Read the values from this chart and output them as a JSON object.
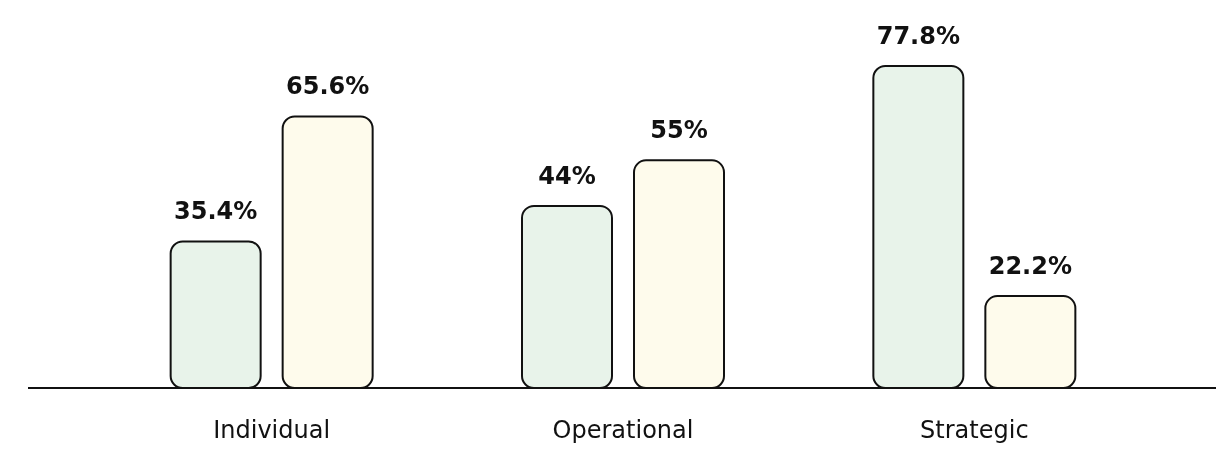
{
  "chart_data": {
    "type": "bar",
    "categories": [
      "Individual",
      "Operational",
      "Strategic"
    ],
    "series": [
      {
        "color": "#e8f3ea",
        "values": [
          35.4,
          44,
          77.8
        ],
        "value_labels": [
          "35.4%",
          "44%",
          "77.8%"
        ]
      },
      {
        "color": "#fefbec",
        "values": [
          65.6,
          55,
          22.2
        ],
        "value_labels": [
          "65.6%",
          "55%",
          "22.2%"
        ]
      }
    ]
  }
}
